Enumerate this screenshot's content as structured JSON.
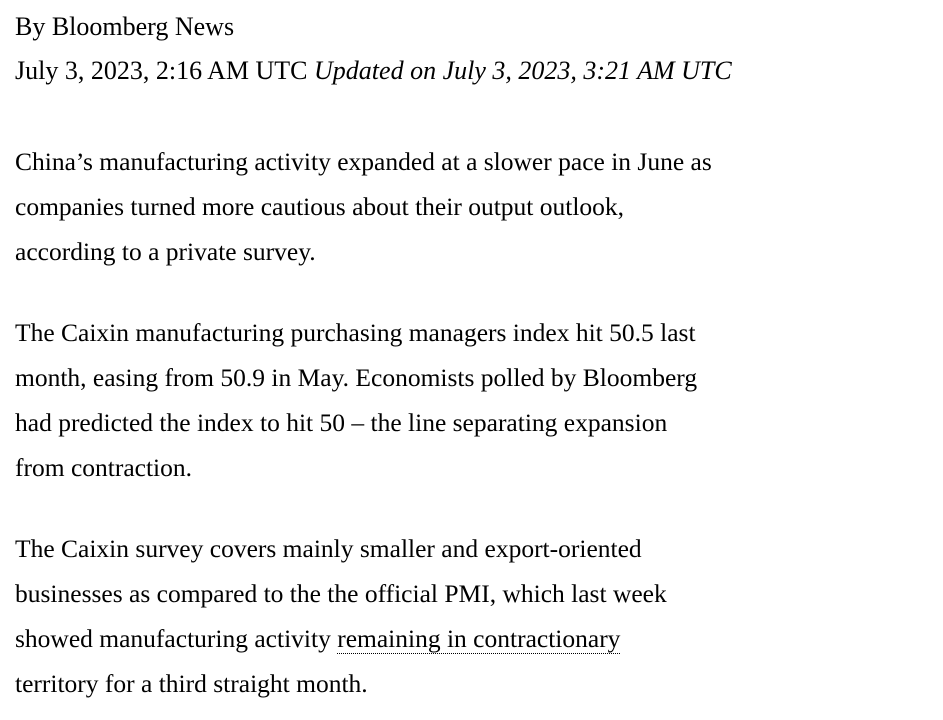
{
  "article": {
    "byline": "By Bloomberg News",
    "published": "July 3, 2023, 2:16 AM UTC",
    "updated": "Updated on July 3, 2023, 3:21 AM UTC",
    "paragraphs": [
      {
        "lines": [
          "China’s manufacturing activity expanded at a slower pace in June as",
          "companies turned more cautious about their output outlook,",
          "according to a private survey."
        ]
      },
      {
        "lines": [
          "The Caixin manufacturing purchasing managers index hit 50.5 last",
          "month, easing from 50.9 in May. Economists polled by Bloomberg",
          "had predicted the index to hit 50 – the line separating expansion",
          "from contraction."
        ]
      },
      {
        "lines": [
          "The Caixin survey covers mainly smaller and export-oriented",
          "businesses as compared to the the official PMI, which last week"
        ],
        "line3_prefix": "showed manufacturing activity ",
        "link_text": "remaining in contractionary",
        "line4": "territory for a third straight month."
      }
    ]
  }
}
